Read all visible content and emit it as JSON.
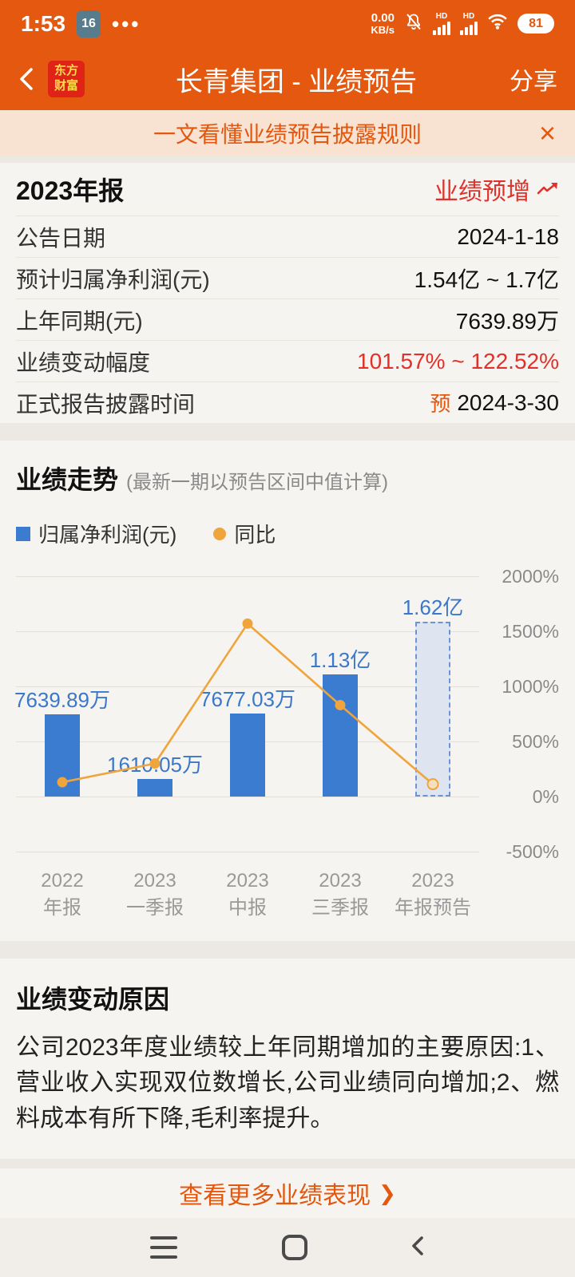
{
  "colors": {
    "accent_orange": "#E4590F",
    "banner_bg": "#F8E2D1",
    "bar_blue": "#3B7BD0",
    "line_orange": "#F0A43C",
    "alert_red": "#E0312B"
  },
  "status_bar": {
    "time": "1:53",
    "badge": "16",
    "net_speed_value": "0.00",
    "net_speed_unit": "KB/s",
    "hd": "HD",
    "battery": "81"
  },
  "header": {
    "logo_line1": "东方",
    "logo_line2": "财富",
    "title": "长青集团 - 业绩预告",
    "share": "分享"
  },
  "banner": {
    "text": "一文看懂业绩预告披露规则",
    "close": "×"
  },
  "report": {
    "period": "2023年报",
    "status": "业绩预增",
    "rows": [
      {
        "label": "公告日期",
        "value": "2024-1-18"
      },
      {
        "label": "预计归属净利润(元)",
        "value": "1.54亿 ~ 1.7亿"
      },
      {
        "label": "上年同期(元)",
        "value": "7639.89万"
      },
      {
        "label": "业绩变动幅度",
        "value": "101.57% ~ 122.52%"
      },
      {
        "label": "正式报告披露时间",
        "prefix": "预",
        "value": "2024-3-30"
      }
    ]
  },
  "trend": {
    "title": "业绩走势",
    "subtitle": "(最新一期以预告区间中值计算)",
    "legend": [
      {
        "type": "bar",
        "label": "归属净利润(元)"
      },
      {
        "type": "line",
        "label": "同比"
      }
    ]
  },
  "chart_data": {
    "type": "combo-bar-line",
    "categories": [
      [
        "2022",
        "年报"
      ],
      [
        "2023",
        "一季报"
      ],
      [
        "2023",
        "中报"
      ],
      [
        "2023",
        "三季报"
      ],
      [
        "2023",
        "年报预告"
      ]
    ],
    "bars": {
      "name": "归属净利润(元)",
      "labels": [
        "7639.89万",
        "1610.05万",
        "7677.03万",
        "1.13亿",
        "1.62亿"
      ],
      "values_wan": [
        7639.89,
        1610.05,
        7677.03,
        11300,
        16200
      ],
      "forecast_index": 4
    },
    "line": {
      "name": "同比",
      "values_pct": [
        130,
        300,
        1570,
        830,
        112
      ]
    },
    "y_right": {
      "ticks": [
        "2000%",
        "1500%",
        "1000%",
        "500%",
        "0%",
        "-500%"
      ],
      "max_pct": 2000,
      "min_pct": -500,
      "step_pct": 500
    }
  },
  "reason": {
    "title": "业绩变动原因",
    "body": "公司2023年度业绩较上年同期增加的主要原因:1、营业收入实现双位数增长,公司业绩同向增加;2、燃料成本有所下降,毛利率提升。"
  },
  "footer_link": {
    "label": "查看更多业绩表现",
    "chevron": "❯"
  }
}
